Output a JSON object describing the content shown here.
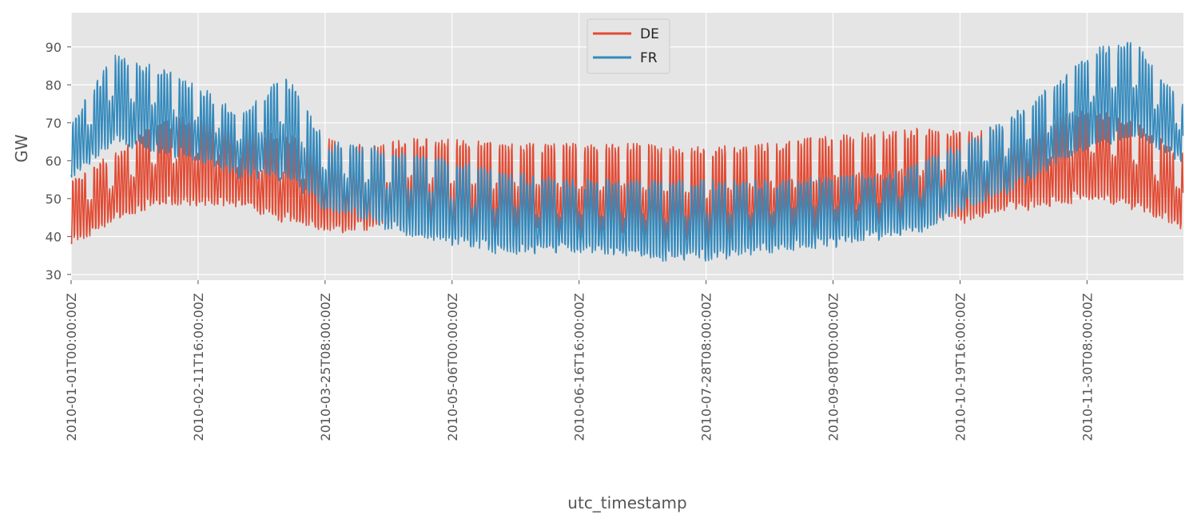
{
  "chart_data": {
    "type": "line",
    "xlabel": "utc_timestamp",
    "ylabel": "GW",
    "x_ticks": [
      "2010-01-01T00:00:00Z",
      "2010-02-11T16:00:00Z",
      "2010-03-25T08:00:00Z",
      "2010-05-06T00:00:00Z",
      "2010-06-16T16:00:00Z",
      "2010-07-28T08:00:00Z",
      "2010-09-08T00:00:00Z",
      "2010-10-19T16:00:00Z",
      "2010-11-30T08:00:00Z"
    ],
    "y_ticks": [
      30,
      40,
      50,
      60,
      70,
      80,
      90
    ],
    "ylim": [
      28.5,
      99
    ],
    "xlim": [
      "2010-01-01T00:00:00Z",
      "2010-12-31T23:00:00Z"
    ],
    "grid": true,
    "legend_position": "upper-center",
    "series": [
      {
        "name": "DE",
        "color": "#E24A33",
        "daily_peak": [
          [
            0,
            55
          ],
          [
            14,
            62
          ],
          [
            28,
            70
          ],
          [
            42,
            73
          ],
          [
            56,
            70
          ],
          [
            70,
            67
          ],
          [
            84,
            66
          ],
          [
            98,
            64
          ],
          [
            112,
            66
          ],
          [
            126,
            66
          ],
          [
            140,
            65
          ],
          [
            154,
            65
          ],
          [
            168,
            65
          ],
          [
            182,
            65
          ],
          [
            196,
            64
          ],
          [
            210,
            64
          ],
          [
            224,
            65
          ],
          [
            238,
            66
          ],
          [
            252,
            67
          ],
          [
            266,
            68
          ],
          [
            280,
            69
          ],
          [
            294,
            68
          ],
          [
            308,
            70
          ],
          [
            322,
            72
          ],
          [
            336,
            74
          ],
          [
            350,
            70
          ],
          [
            364,
            62
          ]
        ],
        "daily_low": [
          [
            0,
            38
          ],
          [
            14,
            44
          ],
          [
            28,
            48
          ],
          [
            42,
            48
          ],
          [
            56,
            48
          ],
          [
            70,
            44
          ],
          [
            84,
            41
          ],
          [
            98,
            42
          ],
          [
            112,
            44
          ],
          [
            126,
            40
          ],
          [
            140,
            40
          ],
          [
            154,
            40
          ],
          [
            168,
            40
          ],
          [
            182,
            40
          ],
          [
            196,
            38
          ],
          [
            210,
            38
          ],
          [
            224,
            40
          ],
          [
            238,
            41
          ],
          [
            252,
            42
          ],
          [
            266,
            44
          ],
          [
            280,
            44
          ],
          [
            294,
            44
          ],
          [
            308,
            47
          ],
          [
            322,
            48
          ],
          [
            336,
            50
          ],
          [
            350,
            47
          ],
          [
            364,
            42
          ]
        ]
      },
      {
        "name": "FR",
        "color": "#348ABD",
        "daily_peak": [
          [
            0,
            70
          ],
          [
            14,
            88
          ],
          [
            28,
            85
          ],
          [
            42,
            80
          ],
          [
            56,
            72
          ],
          [
            70,
            84
          ],
          [
            84,
            65
          ],
          [
            98,
            64
          ],
          [
            112,
            62
          ],
          [
            126,
            60
          ],
          [
            140,
            58
          ],
          [
            154,
            56
          ],
          [
            168,
            55
          ],
          [
            182,
            55
          ],
          [
            196,
            55
          ],
          [
            210,
            55
          ],
          [
            224,
            55
          ],
          [
            238,
            55
          ],
          [
            252,
            56
          ],
          [
            266,
            56
          ],
          [
            280,
            60
          ],
          [
            294,
            65
          ],
          [
            308,
            72
          ],
          [
            322,
            80
          ],
          [
            336,
            90
          ],
          [
            350,
            92
          ],
          [
            364,
            75
          ]
        ],
        "daily_low": [
          [
            0,
            55
          ],
          [
            14,
            65
          ],
          [
            28,
            62
          ],
          [
            42,
            60
          ],
          [
            56,
            56
          ],
          [
            70,
            55
          ],
          [
            84,
            47
          ],
          [
            98,
            44
          ],
          [
            112,
            40
          ],
          [
            126,
            38
          ],
          [
            140,
            36
          ],
          [
            154,
            36
          ],
          [
            168,
            36
          ],
          [
            182,
            35
          ],
          [
            196,
            34
          ],
          [
            210,
            34
          ],
          [
            224,
            36
          ],
          [
            238,
            37
          ],
          [
            252,
            38
          ],
          [
            266,
            40
          ],
          [
            280,
            42
          ],
          [
            294,
            48
          ],
          [
            308,
            52
          ],
          [
            322,
            58
          ],
          [
            336,
            64
          ],
          [
            350,
            66
          ],
          [
            364,
            60
          ]
        ]
      }
    ]
  }
}
